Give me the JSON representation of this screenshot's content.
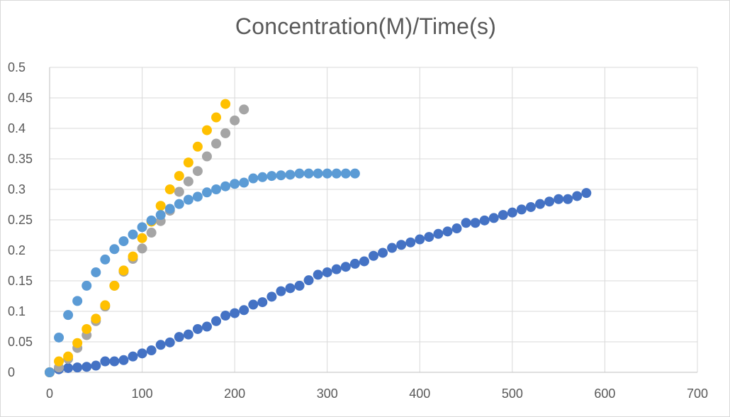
{
  "chart_data": {
    "type": "scatter",
    "title": "Concentration(M)/Time(s)",
    "xlabel": "",
    "ylabel": "",
    "xlim": [
      0,
      700
    ],
    "ylim": [
      0,
      0.5
    ],
    "x_ticks": [
      0,
      100,
      200,
      300,
      400,
      500,
      600,
      700
    ],
    "y_ticks": [
      0,
      0.05,
      0.1,
      0.15,
      0.2,
      0.25,
      0.3,
      0.35,
      0.4,
      0.45,
      0.5
    ],
    "x_tick_labels": [
      "0",
      "100",
      "200",
      "300",
      "400",
      "500",
      "600",
      "700"
    ],
    "y_tick_labels": [
      "0",
      "0.05",
      "0.1",
      "0.15",
      "0.2",
      "0.25",
      "0.3",
      "0.35",
      "0.4",
      "0.45",
      "0.5"
    ],
    "grid": true,
    "legend": "none",
    "series": [
      {
        "color": "#4472C4",
        "points": [
          [
            0,
            0
          ],
          [
            10,
            0.005
          ],
          [
            20,
            0.007
          ],
          [
            30,
            0.008
          ],
          [
            40,
            0.009
          ],
          [
            50,
            0.011
          ],
          [
            60,
            0.018
          ],
          [
            70,
            0.018
          ],
          [
            80,
            0.02
          ],
          [
            90,
            0.026
          ],
          [
            100,
            0.031
          ],
          [
            110,
            0.036
          ],
          [
            120,
            0.045
          ],
          [
            130,
            0.049
          ],
          [
            140,
            0.058
          ],
          [
            150,
            0.062
          ],
          [
            160,
            0.071
          ],
          [
            170,
            0.075
          ],
          [
            180,
            0.084
          ],
          [
            190,
            0.093
          ],
          [
            200,
            0.097
          ],
          [
            210,
            0.102
          ],
          [
            220,
            0.111
          ],
          [
            230,
            0.115
          ],
          [
            240,
            0.124
          ],
          [
            250,
            0.133
          ],
          [
            260,
            0.138
          ],
          [
            270,
            0.142
          ],
          [
            280,
            0.151
          ],
          [
            290,
            0.16
          ],
          [
            300,
            0.164
          ],
          [
            310,
            0.169
          ],
          [
            320,
            0.173
          ],
          [
            330,
            0.178
          ],
          [
            340,
            0.182
          ],
          [
            350,
            0.191
          ],
          [
            360,
            0.196
          ],
          [
            370,
            0.204
          ],
          [
            380,
            0.209
          ],
          [
            390,
            0.213
          ],
          [
            400,
            0.218
          ],
          [
            410,
            0.222
          ],
          [
            420,
            0.227
          ],
          [
            430,
            0.231
          ],
          [
            440,
            0.236
          ],
          [
            450,
            0.245
          ],
          [
            460,
            0.245
          ],
          [
            470,
            0.249
          ],
          [
            480,
            0.253
          ],
          [
            490,
            0.258
          ],
          [
            500,
            0.262
          ],
          [
            510,
            0.267
          ],
          [
            520,
            0.271
          ],
          [
            530,
            0.276
          ],
          [
            540,
            0.28
          ],
          [
            550,
            0.284
          ],
          [
            560,
            0.284
          ],
          [
            570,
            0.289
          ],
          [
            580,
            0.294
          ]
        ]
      },
      {
        "color": "#ED7D31",
        "points": [
          [
            0,
            0
          ]
        ]
      },
      {
        "color": "#A5A5A5",
        "points": [
          [
            0,
            0
          ],
          [
            10,
            0.008
          ],
          [
            20,
            0.022
          ],
          [
            30,
            0.04
          ],
          [
            40,
            0.061
          ],
          [
            50,
            0.084
          ],
          [
            60,
            0.108
          ],
          [
            70,
            0.142
          ],
          [
            80,
            0.165
          ],
          [
            90,
            0.186
          ],
          [
            100,
            0.203
          ],
          [
            110,
            0.229
          ],
          [
            120,
            0.248
          ],
          [
            130,
            0.265
          ],
          [
            140,
            0.296
          ],
          [
            150,
            0.313
          ],
          [
            160,
            0.33
          ],
          [
            170,
            0.354
          ],
          [
            180,
            0.375
          ],
          [
            190,
            0.392
          ],
          [
            200,
            0.413
          ],
          [
            210,
            0.431
          ]
        ]
      },
      {
        "color": "#FFC000",
        "points": [
          [
            0,
            0
          ],
          [
            10,
            0.018
          ],
          [
            20,
            0.026
          ],
          [
            30,
            0.048
          ],
          [
            40,
            0.071
          ],
          [
            50,
            0.088
          ],
          [
            60,
            0.11
          ],
          [
            70,
            0.142
          ],
          [
            80,
            0.167
          ],
          [
            90,
            0.19
          ],
          [
            100,
            0.22
          ],
          [
            110,
            0.247
          ],
          [
            120,
            0.273
          ],
          [
            130,
            0.3
          ],
          [
            140,
            0.322
          ],
          [
            150,
            0.344
          ],
          [
            160,
            0.37
          ],
          [
            170,
            0.397
          ],
          [
            180,
            0.418
          ],
          [
            190,
            0.44
          ]
        ]
      },
      {
        "color": "#5B9BD5",
        "points": [
          [
            0,
            0
          ],
          [
            10,
            0.057
          ],
          [
            20,
            0.094
          ],
          [
            30,
            0.117
          ],
          [
            40,
            0.142
          ],
          [
            50,
            0.164
          ],
          [
            60,
            0.185
          ],
          [
            70,
            0.202
          ],
          [
            80,
            0.215
          ],
          [
            90,
            0.226
          ],
          [
            100,
            0.238
          ],
          [
            110,
            0.249
          ],
          [
            120,
            0.258
          ],
          [
            130,
            0.268
          ],
          [
            140,
            0.276
          ],
          [
            150,
            0.283
          ],
          [
            160,
            0.288
          ],
          [
            170,
            0.295
          ],
          [
            180,
            0.3
          ],
          [
            190,
            0.305
          ],
          [
            200,
            0.309
          ],
          [
            210,
            0.311
          ],
          [
            220,
            0.318
          ],
          [
            230,
            0.32
          ],
          [
            240,
            0.322
          ],
          [
            250,
            0.323
          ],
          [
            260,
            0.324
          ],
          [
            270,
            0.326
          ],
          [
            280,
            0.326
          ],
          [
            290,
            0.326
          ],
          [
            300,
            0.326
          ],
          [
            310,
            0.326
          ],
          [
            320,
            0.326
          ],
          [
            330,
            0.326
          ]
        ]
      }
    ]
  }
}
